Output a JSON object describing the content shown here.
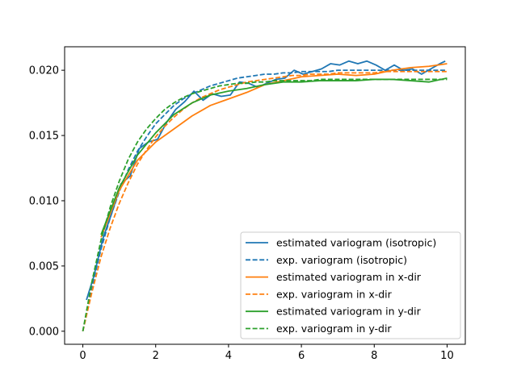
{
  "chart_data": {
    "type": "line",
    "title": "",
    "xlabel": "",
    "ylabel": "",
    "xlim": [
      -0.5,
      10.5
    ],
    "ylim": [
      -0.001,
      0.0218
    ],
    "xticks": [
      0,
      2,
      4,
      6,
      8,
      10
    ],
    "xtick_labels": [
      "0",
      "2",
      "4",
      "6",
      "8",
      "10"
    ],
    "yticks": [
      0.0,
      0.005,
      0.01,
      0.015,
      0.02
    ],
    "ytick_labels": [
      "0.000",
      "0.005",
      "0.010",
      "0.015",
      "0.020"
    ],
    "grid": false,
    "legend_position": "lower-right",
    "series": [
      {
        "name": "estimated variogram (isotropic)",
        "color": "#1f77b4",
        "style": "solid",
        "x": [
          0.1,
          0.3,
          0.55,
          0.8,
          1.05,
          1.3,
          1.55,
          1.8,
          2.05,
          2.3,
          2.55,
          2.8,
          3.05,
          3.3,
          3.55,
          3.8,
          4.05,
          4.3,
          4.55,
          4.8,
          5.05,
          5.3,
          5.55,
          5.8,
          6.05,
          6.3,
          6.55,
          6.8,
          7.05,
          7.3,
          7.55,
          7.8,
          8.05,
          8.3,
          8.55,
          8.8,
          9.05,
          9.3,
          9.55,
          9.8,
          9.95
        ],
        "y": [
          0.0024,
          0.0042,
          0.0071,
          0.0091,
          0.0113,
          0.0119,
          0.014,
          0.0145,
          0.0147,
          0.016,
          0.017,
          0.0176,
          0.0184,
          0.0177,
          0.0182,
          0.018,
          0.0181,
          0.0191,
          0.019,
          0.0187,
          0.019,
          0.0193,
          0.0194,
          0.02,
          0.0197,
          0.0199,
          0.0201,
          0.0205,
          0.0204,
          0.0207,
          0.0205,
          0.0207,
          0.0204,
          0.02,
          0.0204,
          0.02,
          0.0201,
          0.0197,
          0.0201,
          0.0205,
          0.0207
        ]
      },
      {
        "name": "exp. variogram (isotropic)",
        "color": "#1f77b4",
        "style": "dashed",
        "x": [
          0,
          0.25,
          0.5,
          0.75,
          1,
          1.25,
          1.5,
          1.75,
          2,
          2.25,
          2.5,
          2.75,
          3,
          3.25,
          3.5,
          3.75,
          4,
          4.25,
          4.5,
          4.75,
          5,
          5.25,
          5.5,
          5.75,
          6,
          6.25,
          6.5,
          6.75,
          7,
          7.25,
          7.5,
          7.75,
          8,
          8.25,
          8.5,
          8.75,
          9,
          9.25,
          9.5,
          9.75,
          10
        ],
        "y": [
          0.0,
          0.0034,
          0.0063,
          0.0087,
          0.0107,
          0.0124,
          0.0138,
          0.0149,
          0.0159,
          0.0166,
          0.0173,
          0.0178,
          0.0182,
          0.0185,
          0.0188,
          0.019,
          0.0192,
          0.0194,
          0.0195,
          0.0196,
          0.0197,
          0.0197,
          0.0198,
          0.0198,
          0.0199,
          0.0199,
          0.0199,
          0.0199,
          0.02,
          0.02,
          0.02,
          0.02,
          0.02,
          0.02,
          0.02,
          0.02,
          0.02,
          0.02,
          0.02,
          0.02,
          0.02
        ]
      },
      {
        "name": "estimated variogram in x-dir",
        "color": "#ff7f0e",
        "style": "solid",
        "x": [
          0.5,
          1.0,
          1.5,
          2.0,
          2.5,
          3.0,
          3.5,
          4.0,
          4.5,
          5.0,
          5.5,
          6.0,
          6.5,
          7.0,
          7.5,
          8.0,
          8.5,
          9.0,
          9.5,
          10.0
        ],
        "y": [
          0.0072,
          0.0108,
          0.0131,
          0.0145,
          0.0155,
          0.0165,
          0.0173,
          0.0178,
          0.0183,
          0.0189,
          0.0192,
          0.0195,
          0.0196,
          0.0197,
          0.0196,
          0.0197,
          0.02,
          0.0202,
          0.0203,
          0.0205
        ]
      },
      {
        "name": "exp. variogram in x-dir",
        "color": "#ff7f0e",
        "style": "dashed",
        "x": [
          0,
          0.25,
          0.5,
          0.75,
          1,
          1.25,
          1.5,
          1.75,
          2,
          2.25,
          2.5,
          2.75,
          3,
          3.25,
          3.5,
          3.75,
          4,
          4.25,
          4.5,
          4.75,
          5,
          5.25,
          5.5,
          5.75,
          6,
          6.25,
          6.5,
          6.75,
          7,
          7.25,
          7.5,
          7.75,
          8,
          8.25,
          8.5,
          8.75,
          9,
          9.25,
          9.5,
          9.75,
          10
        ],
        "y": [
          0.0,
          0.003,
          0.0057,
          0.0079,
          0.0098,
          0.0114,
          0.0128,
          0.0139,
          0.0149,
          0.0157,
          0.0164,
          0.017,
          0.0175,
          0.0179,
          0.0182,
          0.0185,
          0.0187,
          0.0189,
          0.0191,
          0.0192,
          0.0193,
          0.0194,
          0.0195,
          0.0196,
          0.0196,
          0.0197,
          0.0197,
          0.0197,
          0.0198,
          0.0198,
          0.0198,
          0.0198,
          0.0198,
          0.0199,
          0.0199,
          0.0199,
          0.0199,
          0.0199,
          0.0199,
          0.0199,
          0.0199
        ]
      },
      {
        "name": "estimated variogram in y-dir",
        "color": "#2ca02c",
        "style": "solid",
        "x": [
          0.5,
          1.0,
          1.5,
          2.0,
          2.5,
          3.0,
          3.5,
          4.0,
          4.5,
          5.0,
          5.5,
          6.0,
          6.5,
          7.0,
          7.5,
          8.0,
          8.5,
          9.0,
          9.5,
          10.0
        ],
        "y": [
          0.0074,
          0.011,
          0.0135,
          0.0152,
          0.0166,
          0.0175,
          0.0181,
          0.0184,
          0.0186,
          0.0189,
          0.0191,
          0.0191,
          0.0192,
          0.0192,
          0.0192,
          0.0193,
          0.0193,
          0.0192,
          0.0191,
          0.0194
        ]
      },
      {
        "name": "exp. variogram in y-dir",
        "color": "#2ca02c",
        "style": "dashed",
        "x": [
          0,
          0.25,
          0.5,
          0.75,
          1,
          1.25,
          1.5,
          1.75,
          2,
          2.25,
          2.5,
          2.75,
          3,
          3.25,
          3.5,
          3.75,
          4,
          4.25,
          4.5,
          4.75,
          5,
          5.25,
          5.5,
          5.75,
          6,
          6.25,
          6.5,
          6.75,
          7,
          7.25,
          7.5,
          7.75,
          8,
          8.25,
          8.5,
          8.75,
          9,
          9.25,
          9.5,
          9.75,
          10
        ],
        "y": [
          0.0,
          0.0038,
          0.007,
          0.0095,
          0.0115,
          0.0132,
          0.0145,
          0.0155,
          0.0163,
          0.017,
          0.0175,
          0.0179,
          0.0182,
          0.0184,
          0.0186,
          0.0188,
          0.0189,
          0.019,
          0.019,
          0.0191,
          0.0191,
          0.0192,
          0.0192,
          0.0192,
          0.0192,
          0.0192,
          0.0193,
          0.0193,
          0.0193,
          0.0193,
          0.0193,
          0.0193,
          0.0193,
          0.0193,
          0.0193,
          0.0193,
          0.0193,
          0.0193,
          0.0193,
          0.0193,
          0.0193
        ]
      }
    ]
  }
}
